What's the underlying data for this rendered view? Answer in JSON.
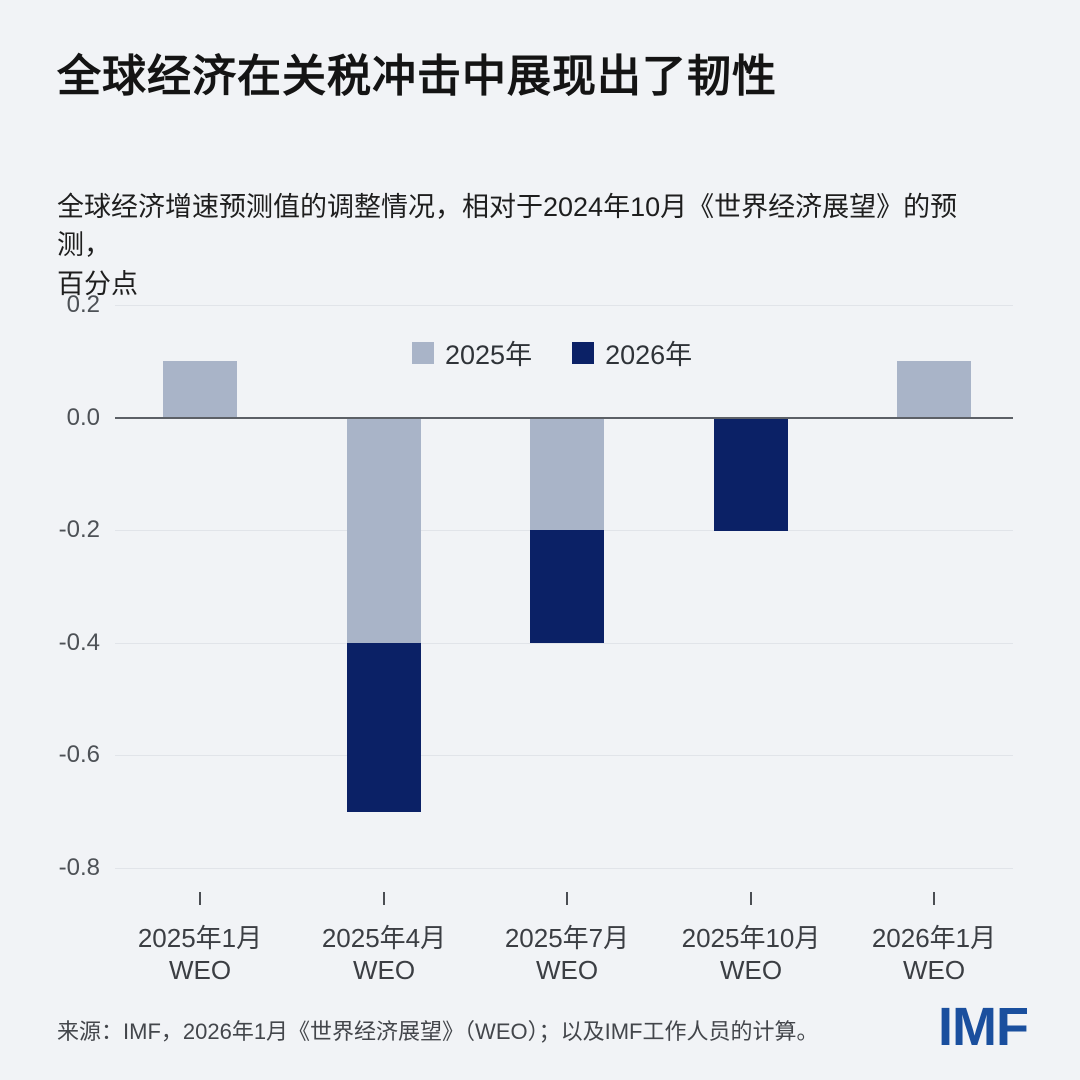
{
  "page": {
    "title": "全球经济在关税冲击中展现出了韧性",
    "subtitle": "全球经济增速预测值的调整情况，相对于2024年10月《世界经济展望》的预测，\n百分点",
    "source": "来源：IMF，2026年1月《世界经济展望》（WEO）；以及IMF工作人员的计算。",
    "logo": "IMF"
  },
  "colors": {
    "background": "#f1f3f6",
    "bar_2025": "#a9b4c8",
    "bar_2026": "#0b2166",
    "gridline": "#e1e4e9",
    "zero_line": "#5c6066",
    "imf_blue": "#1a4f9e",
    "axis_text": "#4d5156"
  },
  "chart_data": {
    "type": "bar",
    "stacked": true,
    "title": "全球经济在关税冲击中展现出了韧性",
    "subtitle": "全球经济增速预测值的调整情况，相对于2024年10月《世界经济展望》的预测，百分点",
    "xlabel": "",
    "ylabel": "百分点",
    "ylim": [
      -0.8,
      0.2
    ],
    "y_ticks": [
      0.2,
      0.0,
      -0.2,
      -0.4,
      -0.6,
      -0.8
    ],
    "grid": true,
    "legend_position": "top-center",
    "categories": [
      {
        "line1": "2025年1月",
        "line2": "WEO"
      },
      {
        "line1": "2025年4月",
        "line2": "WEO"
      },
      {
        "line1": "2025年7月",
        "line2": "WEO"
      },
      {
        "line1": "2025年10月",
        "line2": "WEO"
      },
      {
        "line1": "2026年1月",
        "line2": "WEO"
      }
    ],
    "series": [
      {
        "name": "2025年",
        "color": "#a9b4c8",
        "values": [
          0.1,
          -0.4,
          -0.2,
          0.0,
          0.1
        ]
      },
      {
        "name": "2026年",
        "color": "#0b2166",
        "values": [
          0.0,
          -0.3,
          -0.2,
          -0.2,
          0.0
        ]
      }
    ]
  }
}
